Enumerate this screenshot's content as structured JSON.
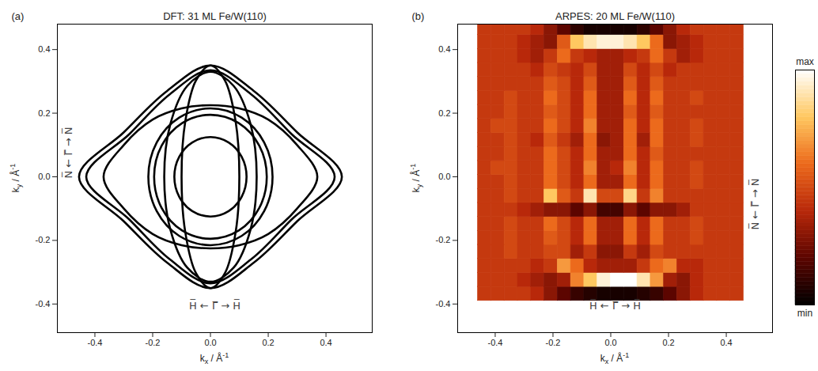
{
  "chart_data": [
    {
      "type": "line",
      "panel_label": "(a)",
      "title": "DFT: 31 ML Fe/W(110)",
      "x_label": "kx / Å-1",
      "y_label": "ky / Å-1",
      "annotations": [
        "H̅ ← Γ̅ → H̅",
        "N̅ ← Γ̅ → N̅"
      ],
      "color": "#000000",
      "xlim": [
        -0.53,
        0.56
      ],
      "ylim": [
        -0.49,
        0.48
      ],
      "xticks": [
        -0.4,
        -0.2,
        {
          "value": 0,
          "label": "0.0"
        },
        0.2,
        0.4
      ],
      "yticks": [
        -0.4,
        -0.2,
        {
          "value": 0,
          "label": "0.0"
        },
        0.2,
        0.4
      ],
      "curves": [
        {
          "x": [
            0.455,
            0.3,
            0.15,
            0,
            -0.15,
            -0.3,
            -0.455,
            -0.3,
            -0.15,
            0,
            0.15,
            0.3
          ],
          "y": [
            0,
            0.14,
            0.27,
            0.35,
            0.27,
            0.14,
            0,
            -0.14,
            -0.27,
            -0.35,
            -0.27,
            -0.14
          ]
        },
        {
          "x": [
            0.43,
            0.28,
            0.14,
            0,
            -0.14,
            -0.28,
            -0.43,
            -0.28,
            -0.14,
            0,
            0.14,
            0.28
          ],
          "y": [
            0,
            0.135,
            0.26,
            0.335,
            0.26,
            0.135,
            0,
            -0.135,
            -0.26,
            -0.335,
            -0.26,
            -0.135
          ]
        },
        {
          "x": [
            0.37,
            0.3,
            0.2,
            0.1,
            0,
            -0.1,
            -0.2,
            -0.3,
            -0.37,
            -0.3,
            -0.2,
            -0.1,
            0,
            0.1,
            0.2,
            0.3
          ],
          "y": [
            0,
            0.1,
            0.18,
            0.215,
            0.225,
            0.215,
            0.18,
            0.1,
            0,
            -0.1,
            -0.18,
            -0.215,
            -0.225,
            -0.215,
            -0.18,
            -0.1
          ]
        },
        {
          "x": [
            0.215,
            0.186,
            0.108,
            0,
            -0.108,
            -0.186,
            -0.215,
            -0.186,
            -0.108,
            0,
            0.108,
            0.186
          ],
          "y": [
            0,
            0.108,
            0.186,
            0.215,
            0.186,
            0.108,
            0,
            -0.108,
            -0.186,
            -0.215,
            -0.186,
            -0.108
          ]
        },
        {
          "x": [
            0.195,
            0.169,
            0.098,
            0,
            -0.098,
            -0.169,
            -0.195,
            -0.169,
            -0.098,
            0,
            0.098,
            0.169
          ],
          "y": [
            0,
            0.098,
            0.169,
            0.195,
            0.169,
            0.098,
            0,
            -0.098,
            -0.169,
            -0.195,
            -0.169,
            -0.098
          ]
        },
        {
          "x": [
            0.125,
            0.108,
            0.063,
            0,
            -0.063,
            -0.108,
            -0.125,
            -0.108,
            -0.063,
            0,
            0.063,
            0.108
          ],
          "y": [
            0,
            0.063,
            0.108,
            0.125,
            0.108,
            0.063,
            0,
            -0.063,
            -0.108,
            -0.125,
            -0.108,
            -0.063
          ]
        },
        {
          "x": [
            0.1,
            0.087,
            0.05,
            0,
            -0.05,
            -0.087,
            -0.1,
            -0.087,
            -0.05,
            0,
            0.05,
            0.087
          ],
          "y": [
            0,
            0.175,
            0.303,
            0.35,
            0.303,
            0.175,
            0,
            -0.175,
            -0.303,
            -0.35,
            -0.303,
            -0.175
          ]
        },
        {
          "x": [
            0.16,
            0.139,
            0.08,
            0,
            -0.08,
            -0.139,
            -0.16,
            -0.139,
            -0.08,
            0,
            0.08,
            0.139
          ],
          "y": [
            0,
            0.165,
            0.286,
            0.33,
            0.286,
            0.165,
            0,
            -0.165,
            -0.286,
            -0.33,
            -0.286,
            -0.165
          ]
        }
      ]
    },
    {
      "type": "heatmap",
      "panel_label": "(b)",
      "title": "ARPES: 20 ML Fe/W(110)",
      "x_label": "kx / Å-1",
      "y_label": "ky / Å-1",
      "annotations": [
        "H̅ ← Γ̅ → H̅",
        "N̅ ← Γ̅ → N̅"
      ],
      "xlim": [
        -0.53,
        0.56
      ],
      "ylim": [
        -0.49,
        0.48
      ],
      "xticks": [
        -0.4,
        -0.2,
        {
          "value": 0,
          "label": "0.0"
        },
        0.2,
        0.4
      ],
      "yticks": [
        -0.4,
        -0.2,
        {
          "value": 0,
          "label": "0.0"
        },
        0.2,
        0.4
      ],
      "zlim": [
        0,
        1
      ],
      "zticks": [
        {
          "value": 1,
          "label": "max"
        },
        {
          "value": 0,
          "label": "min"
        }
      ],
      "x_edges": [
        -0.46,
        -0.414,
        -0.368,
        -0.322,
        -0.276,
        -0.23,
        -0.184,
        -0.138,
        -0.092,
        -0.046,
        0,
        0.046,
        0.092,
        0.138,
        0.184,
        0.23,
        0.276,
        0.322,
        0.368,
        0.414,
        0.46
      ],
      "y_edges": [
        -0.39,
        -0.346,
        -0.302,
        -0.258,
        -0.214,
        -0.17,
        -0.126,
        -0.082,
        -0.038,
        0.006,
        0.05,
        0.094,
        0.138,
        0.182,
        0.226,
        0.27,
        0.314,
        0.358,
        0.402,
        0.446,
        0.48
      ],
      "values": [
        [
          0.45,
          0.45,
          0.45,
          0.45,
          0.4,
          0.3,
          0.2,
          0.12,
          0.08,
          0.05,
          0.05,
          0.05,
          0.08,
          0.12,
          0.2,
          0.3,
          0.4,
          0.45,
          0.45,
          0.45
        ],
        [
          0.45,
          0.45,
          0.45,
          0.4,
          0.35,
          0.3,
          0.35,
          0.65,
          0.8,
          0.95,
          1.0,
          1.0,
          0.9,
          0.7,
          0.35,
          0.3,
          0.4,
          0.45,
          0.45,
          0.45
        ],
        [
          0.45,
          0.45,
          0.45,
          0.45,
          0.4,
          0.45,
          0.7,
          0.6,
          0.4,
          0.35,
          0.35,
          0.35,
          0.45,
          0.6,
          0.65,
          0.4,
          0.4,
          0.45,
          0.45,
          0.45
        ],
        [
          0.45,
          0.45,
          0.5,
          0.45,
          0.45,
          0.5,
          0.5,
          0.35,
          0.45,
          0.3,
          0.3,
          0.45,
          0.35,
          0.5,
          0.45,
          0.45,
          0.45,
          0.45,
          0.45,
          0.45
        ],
        [
          0.45,
          0.45,
          0.5,
          0.45,
          0.45,
          0.55,
          0.5,
          0.4,
          0.6,
          0.35,
          0.35,
          0.6,
          0.4,
          0.6,
          0.45,
          0.45,
          0.5,
          0.45,
          0.45,
          0.45
        ],
        [
          0.45,
          0.45,
          0.5,
          0.45,
          0.45,
          0.6,
          0.5,
          0.4,
          0.6,
          0.35,
          0.35,
          0.6,
          0.4,
          0.6,
          0.45,
          0.45,
          0.5,
          0.45,
          0.45,
          0.45
        ],
        [
          0.45,
          0.45,
          0.45,
          0.4,
          0.35,
          0.3,
          0.3,
          0.2,
          0.3,
          0.15,
          0.15,
          0.3,
          0.2,
          0.3,
          0.3,
          0.35,
          0.45,
          0.45,
          0.45,
          0.45
        ],
        [
          0.45,
          0.45,
          0.5,
          0.45,
          0.45,
          0.8,
          0.55,
          0.45,
          0.9,
          0.5,
          0.5,
          0.85,
          0.45,
          0.65,
          0.45,
          0.45,
          0.45,
          0.45,
          0.45,
          0.45
        ],
        [
          0.45,
          0.45,
          0.5,
          0.45,
          0.45,
          0.6,
          0.5,
          0.4,
          0.6,
          0.35,
          0.35,
          0.6,
          0.4,
          0.6,
          0.45,
          0.45,
          0.5,
          0.45,
          0.45,
          0.45
        ],
        [
          0.45,
          0.5,
          0.5,
          0.45,
          0.45,
          0.6,
          0.5,
          0.4,
          0.65,
          0.35,
          0.4,
          0.65,
          0.4,
          0.6,
          0.45,
          0.45,
          0.5,
          0.45,
          0.45,
          0.45
        ],
        [
          0.45,
          0.45,
          0.5,
          0.45,
          0.45,
          0.6,
          0.5,
          0.4,
          0.6,
          0.35,
          0.35,
          0.6,
          0.4,
          0.55,
          0.45,
          0.45,
          0.45,
          0.45,
          0.45,
          0.45
        ],
        [
          0.45,
          0.45,
          0.5,
          0.45,
          0.4,
          0.55,
          0.45,
          0.35,
          0.6,
          0.3,
          0.35,
          0.6,
          0.35,
          0.6,
          0.45,
          0.45,
          0.5,
          0.45,
          0.45,
          0.45
        ],
        [
          0.45,
          0.5,
          0.5,
          0.45,
          0.45,
          0.6,
          0.5,
          0.4,
          0.65,
          0.35,
          0.35,
          0.6,
          0.4,
          0.6,
          0.45,
          0.45,
          0.5,
          0.45,
          0.45,
          0.45
        ],
        [
          0.45,
          0.45,
          0.5,
          0.45,
          0.45,
          0.55,
          0.5,
          0.4,
          0.6,
          0.35,
          0.35,
          0.55,
          0.4,
          0.55,
          0.45,
          0.45,
          0.45,
          0.45,
          0.45,
          0.45
        ],
        [
          0.45,
          0.45,
          0.5,
          0.45,
          0.45,
          0.6,
          0.5,
          0.4,
          0.6,
          0.35,
          0.35,
          0.6,
          0.4,
          0.6,
          0.45,
          0.45,
          0.5,
          0.45,
          0.45,
          0.45
        ],
        [
          0.45,
          0.45,
          0.45,
          0.45,
          0.45,
          0.55,
          0.5,
          0.4,
          0.55,
          0.35,
          0.35,
          0.55,
          0.4,
          0.55,
          0.45,
          0.45,
          0.45,
          0.45,
          0.45,
          0.45
        ],
        [
          0.45,
          0.45,
          0.45,
          0.45,
          0.4,
          0.5,
          0.45,
          0.4,
          0.5,
          0.35,
          0.35,
          0.5,
          0.4,
          0.5,
          0.4,
          0.45,
          0.45,
          0.45,
          0.45,
          0.45
        ],
        [
          0.45,
          0.45,
          0.45,
          0.4,
          0.35,
          0.45,
          0.6,
          0.45,
          0.4,
          0.35,
          0.35,
          0.4,
          0.45,
          0.6,
          0.45,
          0.35,
          0.4,
          0.45,
          0.45,
          0.45
        ],
        [
          0.45,
          0.45,
          0.45,
          0.4,
          0.35,
          0.3,
          0.55,
          0.8,
          0.9,
          0.95,
          0.95,
          0.9,
          0.8,
          0.6,
          0.3,
          0.35,
          0.4,
          0.45,
          0.45,
          0.45
        ],
        [
          0.45,
          0.45,
          0.45,
          0.45,
          0.4,
          0.3,
          0.2,
          0.1,
          0.05,
          0.05,
          0.05,
          0.05,
          0.1,
          0.2,
          0.3,
          0.4,
          0.45,
          0.45,
          0.45,
          0.45
        ]
      ]
    }
  ]
}
